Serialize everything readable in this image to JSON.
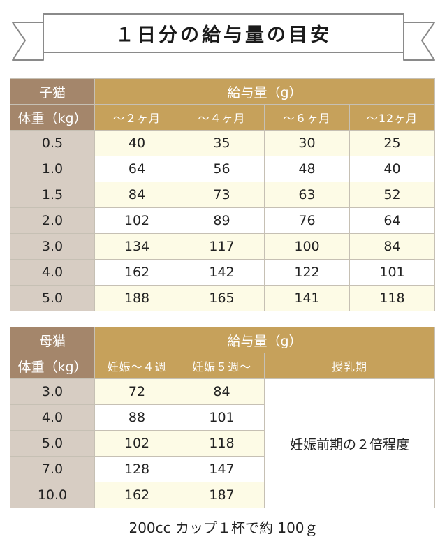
{
  "banner": {
    "title": "１日分の給与量の目安"
  },
  "kitten": {
    "group_label": "子猫",
    "weight_label": "体重（kg）",
    "amount_label": "給与量（g）",
    "columns": [
      "～２ヶ月",
      "～４ヶ月",
      "～６ヶ月",
      "～12ヶ月"
    ],
    "rows": [
      {
        "weight": "0.5",
        "values": [
          "40",
          "35",
          "30",
          "25"
        ]
      },
      {
        "weight": "1.0",
        "values": [
          "64",
          "56",
          "48",
          "40"
        ]
      },
      {
        "weight": "1.5",
        "values": [
          "84",
          "73",
          "63",
          "52"
        ]
      },
      {
        "weight": "2.0",
        "values": [
          "102",
          "89",
          "76",
          "64"
        ]
      },
      {
        "weight": "3.0",
        "values": [
          "134",
          "117",
          "100",
          "84"
        ]
      },
      {
        "weight": "4.0",
        "values": [
          "162",
          "142",
          "122",
          "101"
        ]
      },
      {
        "weight": "5.0",
        "values": [
          "188",
          "165",
          "141",
          "118"
        ]
      }
    ]
  },
  "mother": {
    "group_label": "母猫",
    "weight_label": "体重（kg）",
    "amount_label": "給与量（g）",
    "columns": [
      "妊娠～４週",
      "妊娠５週～",
      "授乳期"
    ],
    "lactation_note": "妊娠前期の２倍程度",
    "rows": [
      {
        "weight": "3.0",
        "values": [
          "72",
          "84"
        ]
      },
      {
        "weight": "4.0",
        "values": [
          "88",
          "101"
        ]
      },
      {
        "weight": "5.0",
        "values": [
          "102",
          "118"
        ]
      },
      {
        "weight": "7.0",
        "values": [
          "128",
          "147"
        ]
      },
      {
        "weight": "10.0",
        "values": [
          "162",
          "187"
        ]
      }
    ]
  },
  "footer": {
    "note": "200cc カップ１杯で約 100ｇ"
  },
  "colors": {
    "header_dark": "#a4866b",
    "header_gold": "#c6a15b",
    "label_cell": "#d7cdc3",
    "stripe_cell": "#fdfbe6",
    "border": "#c6c0b4"
  }
}
